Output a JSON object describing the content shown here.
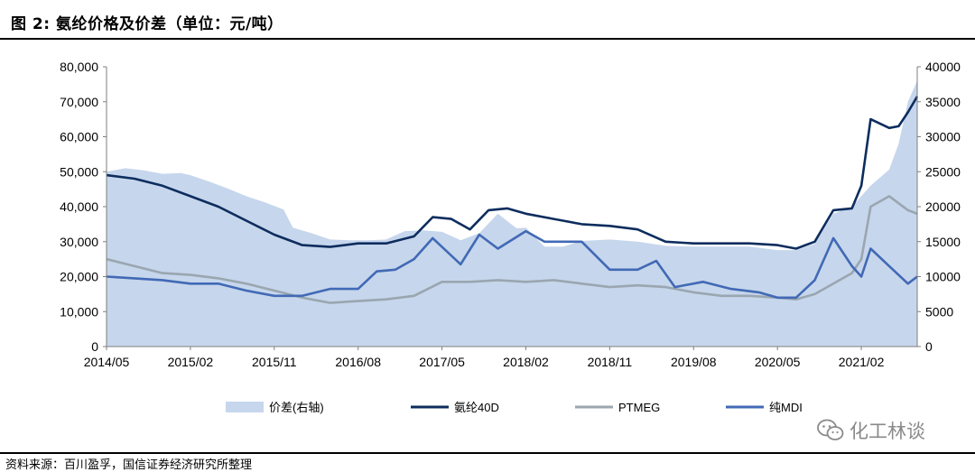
{
  "title": "图 2: 氨纶价格及价差（单位：元/吨）",
  "source": "资料来源：百川盈孚，国信证券经济研究所整理",
  "watermark": "化工林谈",
  "chart_data": {
    "type": "line",
    "x_tick_labels": [
      "2014/05",
      "2015/02",
      "2015/11",
      "2016/08",
      "2017/05",
      "2018/02",
      "2018/11",
      "2019/08",
      "2020/05",
      "2021/02"
    ],
    "x_range": [
      "2014-05",
      "2021-08"
    ],
    "left_axis": {
      "ylim": [
        0,
        80000
      ],
      "tick_labels": [
        "0",
        "10,000",
        "20,000",
        "30,000",
        "40,000",
        "50,000",
        "60,000",
        "70,000",
        "80,000"
      ]
    },
    "right_axis": {
      "ylim": [
        0,
        40000
      ],
      "tick_labels": [
        "0",
        "5000",
        "10000",
        "15000",
        "20000",
        "25000",
        "30000",
        "35000",
        "40000"
      ]
    },
    "legend_position": "bottom",
    "series": [
      {
        "name": "价差(右轴)",
        "type": "area",
        "axis": "right",
        "color": "#c6d6ec",
        "points": [
          [
            "2014-05",
            25000
          ],
          [
            "2014-07",
            25500
          ],
          [
            "2014-09",
            25200
          ],
          [
            "2014-11",
            24700
          ],
          [
            "2015-01",
            24800
          ],
          [
            "2015-02",
            24500
          ],
          [
            "2015-04",
            23600
          ],
          [
            "2015-06",
            22600
          ],
          [
            "2015-08",
            21500
          ],
          [
            "2015-10",
            20600
          ],
          [
            "2015-12",
            19600
          ],
          [
            "2016-01",
            17000
          ],
          [
            "2016-03",
            16200
          ],
          [
            "2016-05",
            15300
          ],
          [
            "2016-07",
            15200
          ],
          [
            "2016-09",
            15200
          ],
          [
            "2016-11",
            15300
          ],
          [
            "2017-01",
            16500
          ],
          [
            "2017-03",
            16600
          ],
          [
            "2017-05",
            16400
          ],
          [
            "2017-07",
            15200
          ],
          [
            "2017-09",
            16200
          ],
          [
            "2017-11",
            19000
          ],
          [
            "2018-01",
            16900
          ],
          [
            "2018-02",
            17000
          ],
          [
            "2018-04",
            14300
          ],
          [
            "2018-06",
            14300
          ],
          [
            "2018-08",
            15100
          ],
          [
            "2018-11",
            15300
          ],
          [
            "2019-02",
            15000
          ],
          [
            "2019-05",
            14400
          ],
          [
            "2019-08",
            14300
          ],
          [
            "2019-11",
            14300
          ],
          [
            "2020-02",
            14300
          ],
          [
            "2020-05",
            13800
          ],
          [
            "2020-07",
            13800
          ],
          [
            "2020-09",
            14700
          ],
          [
            "2020-11",
            19000
          ],
          [
            "2021-01",
            20000
          ],
          [
            "2021-03",
            23000
          ],
          [
            "2021-05",
            25300
          ],
          [
            "2021-06",
            29000
          ],
          [
            "2021-07",
            35000
          ],
          [
            "2021-08",
            38000
          ]
        ]
      },
      {
        "name": "氨纶40D",
        "type": "line",
        "axis": "left",
        "color": "#0d2d5e",
        "points": [
          [
            "2014-05",
            49000
          ],
          [
            "2014-08",
            48000
          ],
          [
            "2014-11",
            46000
          ],
          [
            "2015-02",
            43000
          ],
          [
            "2015-05",
            40000
          ],
          [
            "2015-08",
            36000
          ],
          [
            "2015-11",
            32000
          ],
          [
            "2016-02",
            29000
          ],
          [
            "2016-05",
            28500
          ],
          [
            "2016-08",
            29500
          ],
          [
            "2016-11",
            29500
          ],
          [
            "2017-02",
            31500
          ],
          [
            "2017-04",
            37000
          ],
          [
            "2017-06",
            36500
          ],
          [
            "2017-08",
            33500
          ],
          [
            "2017-10",
            39000
          ],
          [
            "2017-12",
            39500
          ],
          [
            "2018-02",
            38000
          ],
          [
            "2018-05",
            36500
          ],
          [
            "2018-08",
            35000
          ],
          [
            "2018-11",
            34500
          ],
          [
            "2019-02",
            33500
          ],
          [
            "2019-05",
            30000
          ],
          [
            "2019-08",
            29500
          ],
          [
            "2019-11",
            29500
          ],
          [
            "2020-02",
            29500
          ],
          [
            "2020-05",
            29000
          ],
          [
            "2020-07",
            28000
          ],
          [
            "2020-09",
            30000
          ],
          [
            "2020-11",
            39000
          ],
          [
            "2021-01",
            39500
          ],
          [
            "2021-02",
            46000
          ],
          [
            "2021-03",
            65000
          ],
          [
            "2021-05",
            62500
          ],
          [
            "2021-06",
            63000
          ],
          [
            "2021-07",
            67000
          ],
          [
            "2021-08",
            71500
          ]
        ]
      },
      {
        "name": "PTMEG",
        "type": "line",
        "axis": "left",
        "color": "#9aa6b0",
        "points": [
          [
            "2014-05",
            25000
          ],
          [
            "2014-08",
            23000
          ],
          [
            "2014-11",
            21000
          ],
          [
            "2015-02",
            20500
          ],
          [
            "2015-05",
            19500
          ],
          [
            "2015-08",
            18000
          ],
          [
            "2015-11",
            16000
          ],
          [
            "2016-02",
            14000
          ],
          [
            "2016-05",
            12500
          ],
          [
            "2016-08",
            13000
          ],
          [
            "2016-11",
            13500
          ],
          [
            "2017-02",
            14500
          ],
          [
            "2017-05",
            18500
          ],
          [
            "2017-08",
            18500
          ],
          [
            "2017-11",
            19000
          ],
          [
            "2018-02",
            18500
          ],
          [
            "2018-05",
            19000
          ],
          [
            "2018-08",
            18000
          ],
          [
            "2018-11",
            17000
          ],
          [
            "2019-02",
            17500
          ],
          [
            "2019-05",
            17000
          ],
          [
            "2019-08",
            15500
          ],
          [
            "2019-11",
            14500
          ],
          [
            "2020-02",
            14500
          ],
          [
            "2020-05",
            14000
          ],
          [
            "2020-07",
            13500
          ],
          [
            "2020-09",
            15000
          ],
          [
            "2020-11",
            18000
          ],
          [
            "2021-01",
            21000
          ],
          [
            "2021-02",
            25000
          ],
          [
            "2021-03",
            40000
          ],
          [
            "2021-05",
            43000
          ],
          [
            "2021-07",
            39000
          ],
          [
            "2021-08",
            38000
          ]
        ]
      },
      {
        "name": "纯MDI",
        "type": "line",
        "axis": "left",
        "color": "#4169b5",
        "points": [
          [
            "2014-05",
            20000
          ],
          [
            "2014-08",
            19500
          ],
          [
            "2014-11",
            19000
          ],
          [
            "2015-02",
            18000
          ],
          [
            "2015-05",
            18000
          ],
          [
            "2015-08",
            16000
          ],
          [
            "2015-11",
            14500
          ],
          [
            "2016-02",
            14500
          ],
          [
            "2016-05",
            16500
          ],
          [
            "2016-08",
            16500
          ],
          [
            "2016-10",
            21500
          ],
          [
            "2016-12",
            22000
          ],
          [
            "2017-02",
            25000
          ],
          [
            "2017-04",
            31000
          ],
          [
            "2017-07",
            23500
          ],
          [
            "2017-09",
            32000
          ],
          [
            "2017-11",
            28000
          ],
          [
            "2018-02",
            33000
          ],
          [
            "2018-04",
            30000
          ],
          [
            "2018-08",
            30000
          ],
          [
            "2018-11",
            22000
          ],
          [
            "2019-02",
            22000
          ],
          [
            "2019-04",
            24500
          ],
          [
            "2019-06",
            17000
          ],
          [
            "2019-09",
            18500
          ],
          [
            "2019-12",
            16500
          ],
          [
            "2020-03",
            15500
          ],
          [
            "2020-05",
            14000
          ],
          [
            "2020-07",
            14000
          ],
          [
            "2020-09",
            19000
          ],
          [
            "2020-11",
            31000
          ],
          [
            "2021-01",
            23000
          ],
          [
            "2021-02",
            20000
          ],
          [
            "2021-03",
            28000
          ],
          [
            "2021-05",
            23000
          ],
          [
            "2021-07",
            18000
          ],
          [
            "2021-08",
            20000
          ]
        ]
      }
    ]
  }
}
